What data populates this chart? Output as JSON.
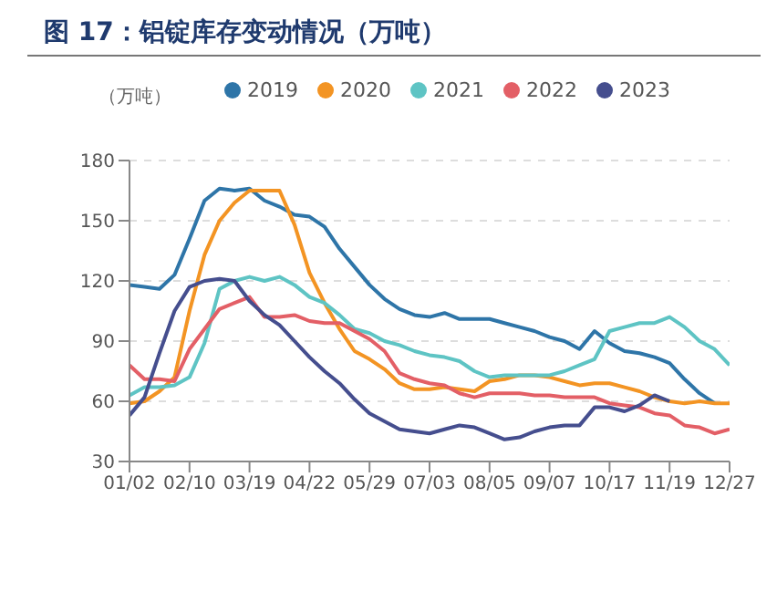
{
  "chart_data": {
    "type": "line",
    "title": "图 17：铝锭库存变动情况（万吨）",
    "ylabel": "（万吨）",
    "categories": [
      "01/02",
      null,
      null,
      null,
      "02/10",
      null,
      null,
      null,
      "03/19",
      null,
      null,
      null,
      "04/22",
      null,
      null,
      null,
      "05/29",
      null,
      null,
      null,
      "07/03",
      null,
      null,
      null,
      "08/05",
      null,
      null,
      null,
      "09/07",
      null,
      null,
      null,
      "10/17",
      null,
      null,
      null,
      "11/19",
      null,
      null,
      null,
      "12/27"
    ],
    "series": [
      {
        "name": "2019",
        "color": "#2e75a8",
        "values": [
          118,
          117,
          116,
          123,
          141,
          160,
          166,
          165,
          166,
          160,
          157,
          153,
          152,
          147,
          136,
          127,
          118,
          111,
          106,
          103,
          102,
          104,
          101,
          101,
          101,
          99,
          97,
          95,
          92,
          90,
          86,
          95,
          89,
          85,
          84,
          82,
          79,
          71,
          64,
          59,
          null
        ]
      },
      {
        "name": "2020",
        "color": "#f39423",
        "values": [
          59,
          60,
          65,
          72,
          105,
          133,
          150,
          159,
          165,
          165,
          165,
          148,
          124,
          109,
          96,
          85,
          81,
          76,
          69,
          66,
          66,
          67,
          66,
          65,
          70,
          71,
          73,
          73,
          72,
          70,
          68,
          69,
          69,
          67,
          65,
          62,
          60,
          59,
          60,
          59,
          59
        ]
      },
      {
        "name": "2021",
        "color": "#5ec4c4",
        "values": [
          63,
          67,
          67,
          68,
          72,
          89,
          116,
          120,
          122,
          120,
          122,
          118,
          112,
          109,
          103,
          96,
          94,
          90,
          88,
          85,
          83,
          82,
          80,
          75,
          72,
          73,
          73,
          73,
          73,
          75,
          78,
          81,
          95,
          97,
          99,
          99,
          102,
          97,
          90,
          86,
          78
        ]
      },
      {
        "name": "2022",
        "color": "#e35f66",
        "values": [
          78,
          71,
          71,
          70,
          86,
          96,
          106,
          109,
          112,
          102,
          102,
          103,
          100,
          99,
          99,
          95,
          91,
          85,
          74,
          71,
          69,
          68,
          64,
          62,
          64,
          64,
          64,
          63,
          63,
          62,
          62,
          62,
          59,
          58,
          57,
          54,
          53,
          48,
          47,
          44,
          46
        ]
      },
      {
        "name": "2023",
        "color": "#454e8e",
        "values": [
          53,
          62,
          84,
          105,
          117,
          120,
          121,
          120,
          110,
          103,
          98,
          90,
          82,
          75,
          69,
          61,
          54,
          50,
          46,
          45,
          44,
          46,
          48,
          47,
          44,
          41,
          42,
          45,
          47,
          48,
          48,
          57,
          57,
          55,
          58,
          63,
          60,
          null,
          null,
          null,
          null
        ]
      }
    ],
    "ylim": [
      30,
      180
    ],
    "yticks": [
      30,
      60,
      90,
      120,
      150,
      180
    ],
    "grid": "y",
    "legend": "top",
    "marker": "none",
    "line_style": "solid"
  }
}
